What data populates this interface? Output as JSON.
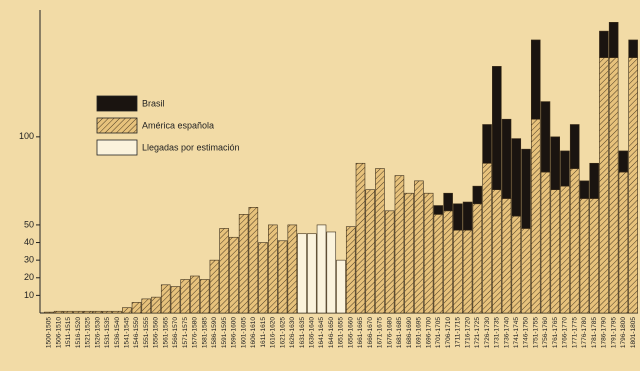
{
  "chart_data": {
    "type": "bar",
    "categories": [
      "1500-1505",
      "1506-1510",
      "1511-1515",
      "1516-1520",
      "1521-1525",
      "1526-1530",
      "1531-1535",
      "1536-1540",
      "1541-1545",
      "1546-1550",
      "1551-1555",
      "1556-1560",
      "1561-1565",
      "1566-1570",
      "1571-1575",
      "1576-1580",
      "1581-1585",
      "1586-1590",
      "1591-1595",
      "1596-1600",
      "1601-1605",
      "1606-1610",
      "1611-1615",
      "1616-1620",
      "1621-1625",
      "1626-1630",
      "1631-1635",
      "1636-1640",
      "1641-1645",
      "1646-1650",
      "1651-1655",
      "1656-1660",
      "1661-1665",
      "1666-1670",
      "1671-1675",
      "1676-1680",
      "1681-1685",
      "1686-1690",
      "1691-1695",
      "1696-1700",
      "1701-1705",
      "1706-1710",
      "1711-1715",
      "1716-1720",
      "1721-1725",
      "1726-1730",
      "1731-1735",
      "1736-1740",
      "1741-1745",
      "1746-1750",
      "1751-1755",
      "1756-1760",
      "1761-1765",
      "1766-1770",
      "1771-1775",
      "1776-1780",
      "1781-1785",
      "1786-1790",
      "1791-1795",
      "1796-1800",
      "1801-1805"
    ],
    "series": [
      {
        "name": "América española",
        "color": "#e7c27c",
        "pattern": "hatched",
        "values": [
          0.5,
          1,
          1,
          1,
          1,
          1,
          1,
          1,
          3,
          6,
          8,
          9,
          16,
          15,
          19,
          21,
          19,
          30,
          48,
          43,
          56,
          60,
          40,
          50,
          41,
          50,
          null,
          null,
          null,
          null,
          null,
          49,
          85,
          70,
          82,
          58,
          78,
          68,
          75,
          68,
          56,
          58,
          47,
          47,
          62,
          85,
          70,
          65,
          55,
          48,
          110,
          80,
          70,
          72,
          82,
          65,
          65,
          145,
          145,
          80,
          145
        ]
      },
      {
        "name": "Brasil",
        "color": "#1a1410",
        "values": [
          null,
          null,
          null,
          null,
          null,
          null,
          null,
          null,
          null,
          null,
          null,
          null,
          null,
          null,
          null,
          null,
          null,
          null,
          null,
          null,
          null,
          null,
          null,
          null,
          null,
          null,
          null,
          null,
          null,
          null,
          null,
          null,
          null,
          null,
          null,
          null,
          null,
          null,
          null,
          null,
          5,
          10,
          15,
          16,
          10,
          22,
          70,
          45,
          44,
          45,
          45,
          40,
          30,
          20,
          25,
          10,
          20,
          15,
          20,
          12,
          10
        ]
      },
      {
        "name": "Llegadas por estimación",
        "color": "#fbf3dc",
        "values": [
          null,
          null,
          null,
          null,
          null,
          null,
          null,
          null,
          null,
          null,
          null,
          null,
          null,
          null,
          null,
          null,
          null,
          null,
          null,
          null,
          null,
          null,
          null,
          null,
          null,
          null,
          45,
          45,
          50,
          46,
          30,
          null,
          null,
          null,
          null,
          null,
          null,
          null,
          null,
          null,
          null,
          null,
          null,
          null,
          null,
          null,
          null,
          null,
          null,
          null,
          null,
          null,
          null,
          null,
          null,
          null,
          null,
          null,
          null,
          null,
          null
        ]
      }
    ],
    "ylim": [
      0,
      172
    ],
    "yticks": [
      10,
      20,
      30,
      40,
      50,
      100
    ]
  }
}
